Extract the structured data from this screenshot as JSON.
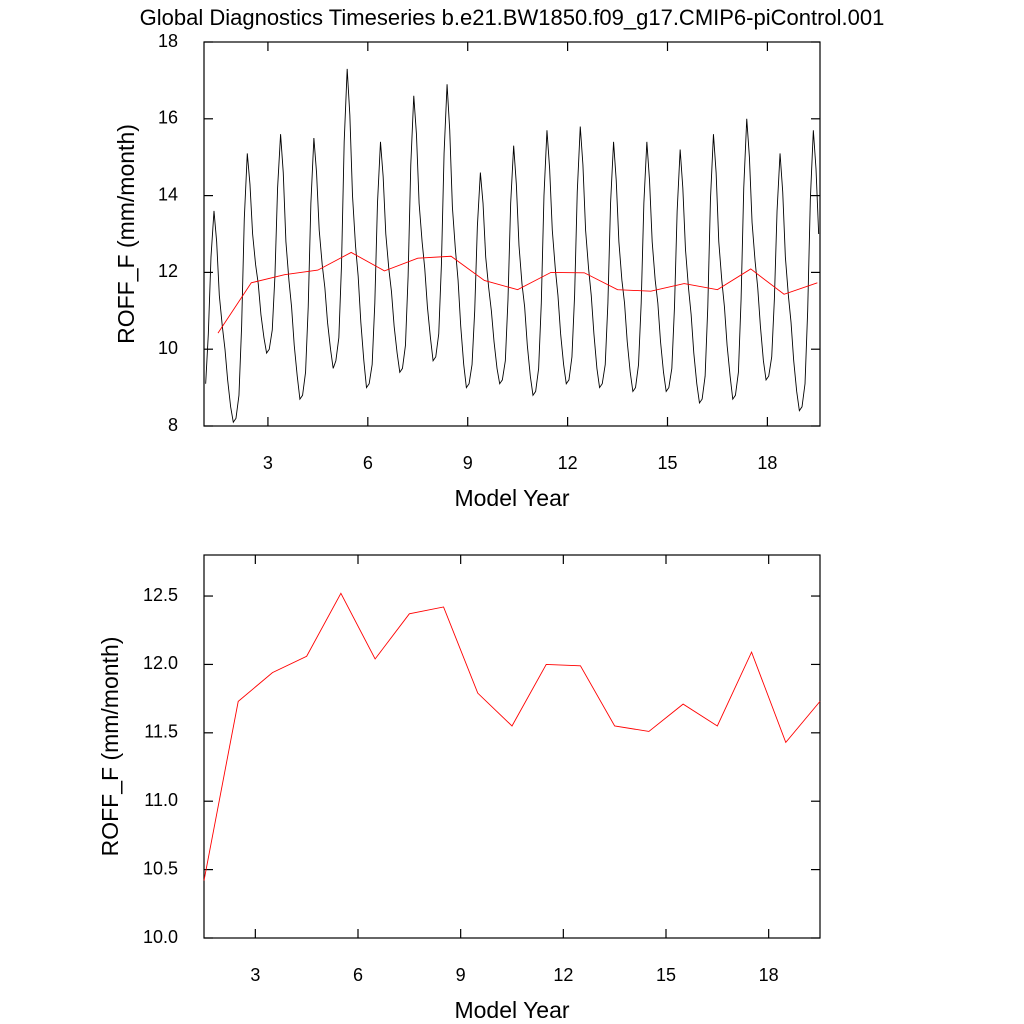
{
  "chart_data": [
    {
      "type": "line",
      "title": "Global Diagnostics Timeseries b.e21.BW1850.f09_g17.CMIP6-piControl.001",
      "xlabel": "Model Year",
      "ylabel": "ROFF_F (mm/month)",
      "xlim": [
        1.08,
        19.58
      ],
      "xticks": [
        3,
        6,
        9,
        12,
        15,
        18
      ],
      "ylim": [
        8,
        18
      ],
      "yticks": [
        8,
        10,
        12,
        14,
        16,
        18
      ],
      "series": [
        {
          "color": "#000000",
          "x": [
            1.13,
            1.21,
            1.29,
            1.38,
            1.46,
            1.54,
            1.63,
            1.71,
            1.79,
            1.88,
            1.96,
            2.04,
            2.13,
            2.21,
            2.29,
            2.38,
            2.46,
            2.54,
            2.63,
            2.71,
            2.79,
            2.88,
            2.96,
            3.04,
            3.13,
            3.21,
            3.29,
            3.38,
            3.46,
            3.54,
            3.63,
            3.71,
            3.79,
            3.88,
            3.96,
            4.04,
            4.13,
            4.21,
            4.29,
            4.38,
            4.46,
            4.54,
            4.63,
            4.71,
            4.79,
            4.88,
            4.96,
            5.04,
            5.13,
            5.21,
            5.29,
            5.38,
            5.46,
            5.54,
            5.63,
            5.71,
            5.79,
            5.88,
            5.96,
            6.04,
            6.13,
            6.21,
            6.29,
            6.38,
            6.46,
            6.54,
            6.63,
            6.71,
            6.79,
            6.88,
            6.96,
            7.04,
            7.13,
            7.21,
            7.29,
            7.38,
            7.46,
            7.54,
            7.63,
            7.71,
            7.79,
            7.88,
            7.96,
            8.04,
            8.13,
            8.21,
            8.29,
            8.38,
            8.46,
            8.54,
            8.63,
            8.71,
            8.79,
            8.88,
            8.96,
            9.04,
            9.13,
            9.21,
            9.29,
            9.38,
            9.46,
            9.54,
            9.63,
            9.71,
            9.79,
            9.88,
            9.96,
            10.04,
            10.13,
            10.21,
            10.29,
            10.38,
            10.46,
            10.54,
            10.63,
            10.71,
            10.79,
            10.88,
            10.96,
            11.04,
            11.13,
            11.21,
            11.29,
            11.38,
            11.46,
            11.54,
            11.63,
            11.71,
            11.79,
            11.88,
            11.96,
            12.04,
            12.13,
            12.21,
            12.29,
            12.38,
            12.46,
            12.54,
            12.63,
            12.71,
            12.79,
            12.88,
            12.96,
            13.04,
            13.13,
            13.21,
            13.29,
            13.38,
            13.46,
            13.54,
            13.63,
            13.71,
            13.79,
            13.88,
            13.96,
            14.04,
            14.13,
            14.21,
            14.29,
            14.38,
            14.46,
            14.54,
            14.63,
            14.71,
            14.79,
            14.88,
            14.96,
            15.04,
            15.13,
            15.21,
            15.29,
            15.38,
            15.46,
            15.54,
            15.63,
            15.71,
            15.79,
            15.88,
            15.96,
            16.04,
            16.13,
            16.21,
            16.29,
            16.38,
            16.46,
            16.54,
            16.63,
            16.71,
            16.79,
            16.88,
            16.96,
            17.04,
            17.13,
            17.21,
            17.29,
            17.38,
            17.46,
            17.54,
            17.63,
            17.71,
            17.79,
            17.88,
            17.96,
            18.04,
            18.13,
            18.21,
            18.29,
            18.38,
            18.46,
            18.54,
            18.63,
            18.71,
            18.79,
            18.88,
            18.96,
            19.04,
            19.13,
            19.21,
            19.29,
            19.38,
            19.46,
            19.54
          ],
          "values": [
            9.1,
            10.4,
            12.4,
            13.6,
            12.8,
            11.4,
            10.6,
            10.0,
            9.2,
            8.5,
            8.1,
            8.2,
            8.8,
            10.6,
            13.4,
            15.1,
            14.3,
            13.0,
            12.2,
            11.7,
            10.9,
            10.3,
            9.9,
            10.0,
            10.5,
            11.9,
            14.2,
            15.6,
            14.6,
            12.8,
            11.8,
            11.1,
            10.1,
            9.3,
            8.7,
            8.8,
            9.4,
            11.1,
            13.8,
            15.5,
            14.6,
            13.1,
            12.2,
            11.6,
            10.7,
            10.0,
            9.5,
            9.7,
            10.3,
            12.2,
            15.4,
            17.3,
            16.1,
            14.0,
            12.7,
            11.9,
            10.7,
            9.7,
            9.0,
            9.1,
            9.6,
            11.2,
            13.8,
            15.4,
            14.5,
            13.0,
            12.1,
            11.5,
            10.6,
            9.9,
            9.4,
            9.5,
            10.1,
            11.9,
            14.8,
            16.6,
            15.6,
            13.8,
            12.8,
            12.1,
            11.1,
            10.3,
            9.7,
            9.8,
            10.4,
            12.2,
            15.1,
            16.9,
            15.7,
            13.7,
            12.6,
            11.8,
            10.6,
            9.6,
            9.0,
            9.1,
            9.6,
            11.0,
            13.2,
            14.6,
            13.8,
            12.4,
            11.6,
            11.0,
            10.2,
            9.5,
            9.1,
            9.2,
            9.7,
            11.3,
            13.8,
            15.3,
            14.3,
            12.7,
            11.7,
            11.1,
            10.1,
            9.3,
            8.8,
            8.9,
            9.5,
            11.2,
            14.0,
            15.7,
            14.7,
            13.1,
            12.1,
            11.4,
            10.4,
            9.6,
            9.1,
            9.2,
            9.8,
            11.4,
            14.1,
            15.8,
            14.8,
            13.1,
            12.1,
            11.4,
            10.4,
            9.5,
            9.0,
            9.1,
            9.6,
            11.2,
            13.8,
            15.4,
            14.4,
            12.8,
            11.8,
            11.2,
            10.2,
            9.4,
            8.9,
            9.0,
            9.6,
            11.2,
            13.8,
            15.4,
            14.4,
            12.8,
            11.8,
            11.2,
            10.2,
            9.4,
            8.9,
            9.0,
            9.5,
            11.1,
            13.6,
            15.2,
            14.2,
            12.6,
            11.6,
            10.9,
            9.9,
            9.1,
            8.6,
            8.7,
            9.3,
            11.1,
            13.9,
            15.6,
            14.6,
            12.8,
            11.8,
            11.1,
            10.1,
            9.3,
            8.7,
            8.8,
            9.4,
            11.3,
            14.2,
            16.0,
            15.0,
            13.3,
            12.3,
            11.6,
            10.6,
            9.7,
            9.2,
            9.3,
            9.8,
            11.3,
            13.6,
            15.1,
            14.1,
            12.4,
            11.4,
            10.7,
            9.7,
            8.9,
            8.4,
            8.5,
            9.1,
            11.0,
            13.9,
            15.7,
            14.7,
            13.0
          ]
        },
        {
          "color": "#ff0000",
          "x": [
            1.5,
            2.5,
            3.5,
            4.5,
            5.5,
            6.5,
            7.5,
            8.5,
            9.5,
            10.5,
            11.5,
            12.5,
            13.5,
            14.5,
            15.5,
            16.5,
            17.5,
            18.5,
            19.5
          ],
          "values": [
            10.42,
            11.73,
            11.94,
            12.06,
            12.52,
            12.04,
            12.37,
            12.42,
            11.79,
            11.55,
            12.0,
            11.99,
            11.55,
            11.51,
            11.71,
            11.55,
            12.09,
            11.43,
            11.73
          ]
        }
      ]
    },
    {
      "type": "line",
      "xlabel": "Model Year",
      "ylabel": "ROFF_F (mm/month)",
      "xlim": [
        1.5,
        19.5
      ],
      "xticks": [
        3,
        6,
        9,
        12,
        15,
        18
      ],
      "ylim": [
        10,
        12.8
      ],
      "yticks": [
        {
          "value": 10,
          "label": "10.0"
        },
        10.5,
        {
          "value": 11,
          "label": "11.0"
        },
        11.5,
        {
          "value": 12,
          "label": "12.0"
        },
        12.5
      ],
      "series": [
        {
          "color": "#ff0000",
          "x": [
            1.5,
            2.5,
            3.5,
            4.5,
            5.5,
            6.5,
            7.5,
            8.5,
            9.5,
            10.5,
            11.5,
            12.5,
            13.5,
            14.5,
            15.5,
            16.5,
            17.5,
            18.5,
            19.5
          ],
          "values": [
            10.42,
            11.73,
            11.94,
            12.06,
            12.52,
            12.04,
            12.37,
            12.42,
            11.79,
            11.55,
            12.0,
            11.99,
            11.55,
            11.51,
            11.71,
            11.55,
            12.09,
            11.43,
            11.73
          ]
        }
      ]
    }
  ]
}
